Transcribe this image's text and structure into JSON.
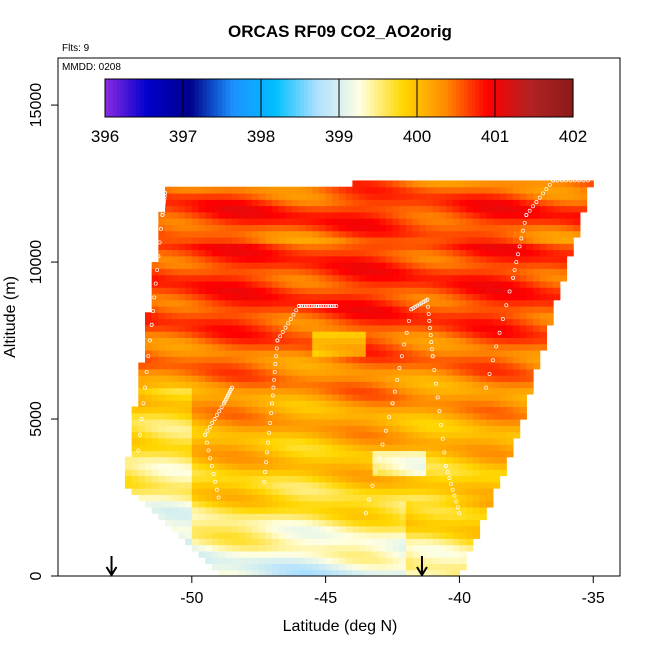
{
  "chart_data": {
    "type": "heatmap",
    "title": "ORCAS RF09 CO2_AO2orig",
    "note_flights": "Flts: 9",
    "note_date": "MMDD: 0208",
    "xlabel": "Latitude (deg N)",
    "ylabel": "Altitude (m)",
    "xlim": [
      -55,
      -34
    ],
    "ylim": [
      0,
      16500
    ],
    "x_ticks": [
      -50,
      -45,
      -40,
      -35
    ],
    "y_ticks": [
      0,
      5000,
      10000,
      15000
    ],
    "colorbar": {
      "min": 396,
      "max": 402,
      "ticks": [
        396,
        397,
        398,
        399,
        400,
        401,
        402
      ],
      "colors": [
        "#8a2be2",
        "#0000cd",
        "#00008b",
        "#1e90ff",
        "#00bfff",
        "#b0e0ff",
        "#ffffe0",
        "#ffd700",
        "#ff8c00",
        "#ff0000",
        "#b22222",
        "#8b1a1a"
      ]
    },
    "arrows": [
      -53,
      -41.4
    ],
    "domain_outline": [
      [
        -52.5,
        3000
      ],
      [
        -51.0,
        12300
      ],
      [
        -37.0,
        12700
      ],
      [
        -35.0,
        12700
      ],
      [
        -38.0,
        4000
      ],
      [
        -40.0,
        0
      ],
      [
        -49.0,
        0
      ]
    ],
    "profiles": [
      {
        "lat": [
          -52.0,
          -51.5,
          -51.1,
          -51.0
        ],
        "alt": [
          4000,
          8000,
          11500,
          12200
        ]
      },
      {
        "lat": [
          -49.0,
          -49.5,
          -48.8,
          -48.5
        ],
        "alt": [
          2500,
          4500,
          5500,
          6000
        ]
      },
      {
        "lat": [
          -47.3,
          -47.0,
          -46.8,
          -46.0,
          -45.3,
          -44.6
        ],
        "alt": [
          3000,
          5500,
          7500,
          8600,
          8600,
          8600
        ]
      },
      {
        "lat": [
          -43.5,
          -42.5,
          -41.8,
          -41.2,
          -41.0,
          -40.5,
          -40.0
        ],
        "alt": [
          2000,
          5500,
          8500,
          8800,
          7000,
          3500,
          2000
        ]
      },
      {
        "lat": [
          -39.0,
          -38.0,
          -37.5,
          -36.5,
          -35.2
        ],
        "alt": [
          6000,
          9500,
          11500,
          12600,
          12600
        ]
      }
    ]
  }
}
